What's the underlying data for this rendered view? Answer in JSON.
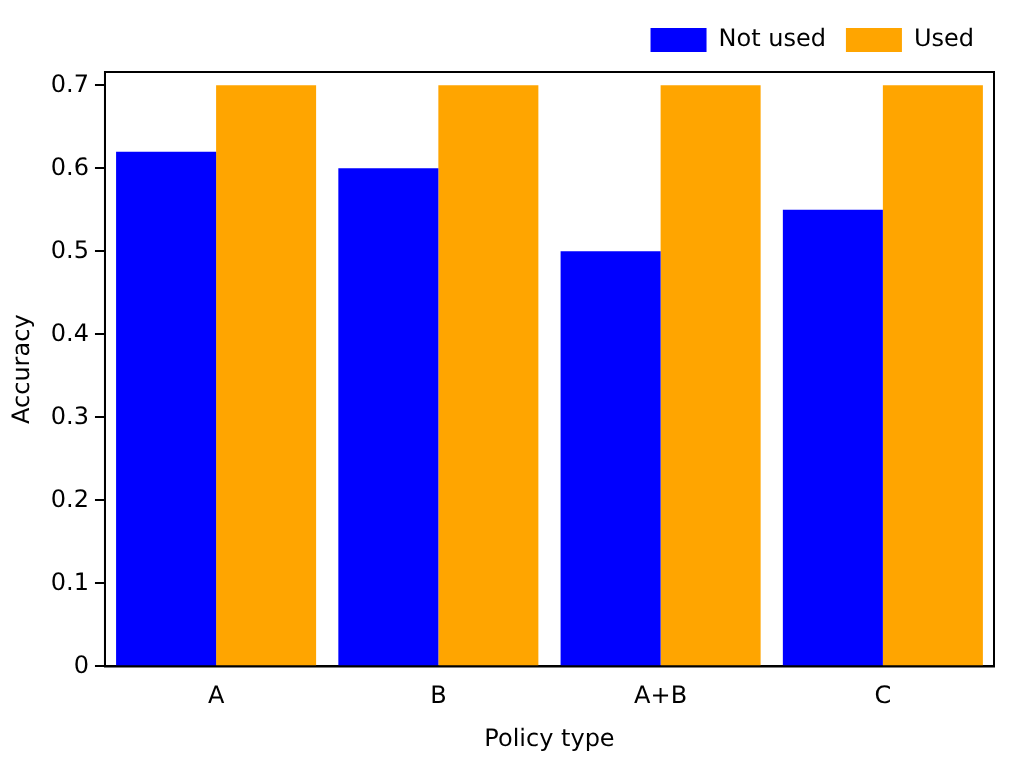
{
  "chart_data": {
    "type": "bar",
    "xlabel": "Policy type",
    "ylabel": "Accuracy",
    "categories": [
      "A",
      "B",
      "A+B",
      "C"
    ],
    "series": [
      {
        "name": "Not used",
        "color": "#0000ff",
        "values": [
          0.62,
          0.6,
          0.5,
          0.55
        ]
      },
      {
        "name": "Used",
        "color": "#ffa500",
        "values": [
          0.7,
          0.7,
          0.7,
          0.7
        ]
      }
    ],
    "ylim": [
      0,
      0.716
    ],
    "yticks": [
      0,
      0.1,
      0.2,
      0.3,
      0.4,
      0.5,
      0.6,
      0.7
    ],
    "grid": false,
    "legend": "top right"
  }
}
